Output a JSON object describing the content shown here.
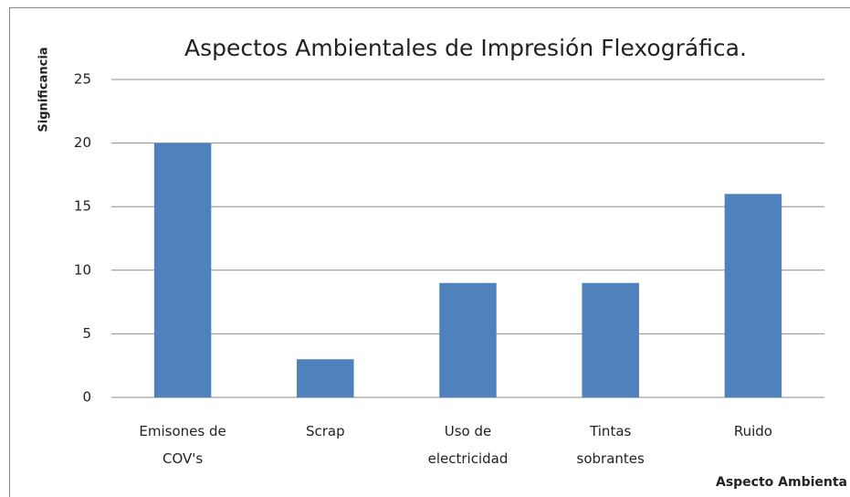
{
  "chart_data": {
    "type": "bar",
    "title": "Aspectos Ambientales de Impresión Flexográfica.",
    "y_label": "Significancia",
    "x_label": "Aspecto Ambienta",
    "categories": [
      "Emisones de\nCOV's",
      "Scrap",
      "Uso de\nelectricidad",
      "Tintas\nsobrantes",
      "Ruido"
    ],
    "values": [
      20,
      3,
      9,
      9,
      16
    ],
    "color": "#4f81bd",
    "ylim": [
      0,
      25
    ],
    "yticks": [
      0,
      5,
      10,
      15,
      20,
      25
    ],
    "grid": true
  }
}
